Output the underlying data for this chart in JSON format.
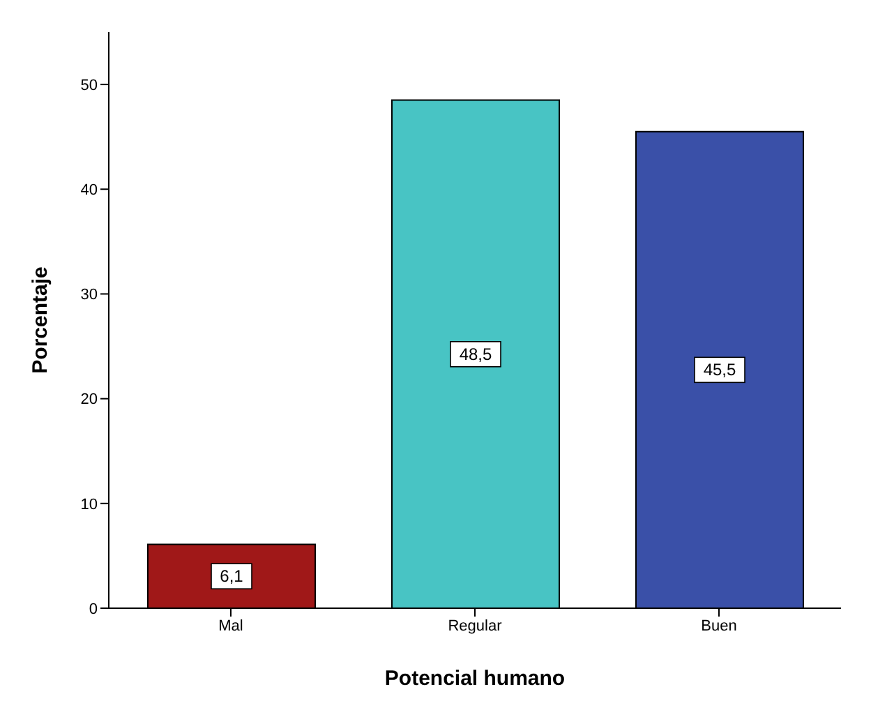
{
  "chart_data": {
    "type": "bar",
    "xlabel": "Potencial humano",
    "ylabel": "Porcentaje",
    "categories": [
      "Mal",
      "Regular",
      "Buen"
    ],
    "values": [
      6.1,
      48.5,
      45.5
    ],
    "colors": [
      "#a01818",
      "#48c4c4",
      "#3a50a8"
    ],
    "value_labels": [
      "6,1",
      "48,5",
      "45,5"
    ],
    "ylim": [
      0,
      55
    ],
    "yticks": [
      0,
      10,
      20,
      30,
      40,
      50
    ],
    "grid": false,
    "legend": false
  }
}
